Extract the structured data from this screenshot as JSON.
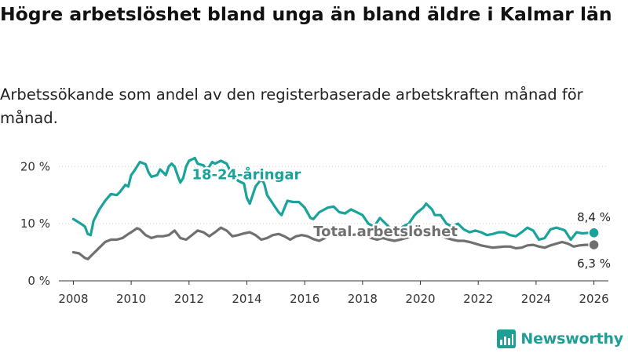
{
  "title": "Högre arbetslöshet bland unga än bland äldre i Kalmar län",
  "subtitle": "Arbetssökande som andel av den registerbaserade arbetskraften månad för månad.",
  "brand": {
    "name": "Newsworthy",
    "icon": "newsworthy-chart-icon",
    "color": "#1f9e96"
  },
  "colors": {
    "youth": "#1aa39b",
    "total": "#707070",
    "grid": "#cccccc",
    "axis": "#333333"
  },
  "chart_data": {
    "type": "line",
    "title": "Högre arbetslöshet bland unga än bland äldre i Kalmar län",
    "xlabel": "",
    "ylabel": "",
    "xlim": [
      2007.5,
      2026.5
    ],
    "ylim": [
      0,
      21
    ],
    "x_ticks": [
      2008,
      2010,
      2012,
      2014,
      2016,
      2018,
      2020,
      2022,
      2024,
      2026
    ],
    "x_tick_labels": [
      "2008",
      "2010",
      "2012",
      "2014",
      "2016",
      "2018",
      "2020",
      "2022",
      "2024",
      "2026"
    ],
    "y_ticks": [
      0,
      10,
      20
    ],
    "y_tick_labels": [
      "0 %",
      "10 %",
      "20 %"
    ],
    "series": [
      {
        "name": "18-24-åringar",
        "color": "#1aa39b",
        "end_label": "8,4 %",
        "points": [
          [
            2008.0,
            10.8
          ],
          [
            2008.2,
            10.2
          ],
          [
            2008.4,
            9.5
          ],
          [
            2008.5,
            8.2
          ],
          [
            2008.6,
            8.0
          ],
          [
            2008.7,
            10.5
          ],
          [
            2008.9,
            12.5
          ],
          [
            2009.1,
            14.0
          ],
          [
            2009.3,
            15.2
          ],
          [
            2009.5,
            15.0
          ],
          [
            2009.6,
            15.5
          ],
          [
            2009.8,
            16.8
          ],
          [
            2009.9,
            16.5
          ],
          [
            2010.0,
            18.5
          ],
          [
            2010.1,
            19.2
          ],
          [
            2010.2,
            20.0
          ],
          [
            2010.3,
            20.8
          ],
          [
            2010.5,
            20.4
          ],
          [
            2010.6,
            19.0
          ],
          [
            2010.7,
            18.2
          ],
          [
            2010.9,
            18.5
          ],
          [
            2011.0,
            19.5
          ],
          [
            2011.2,
            18.5
          ],
          [
            2011.3,
            20.0
          ],
          [
            2011.4,
            20.5
          ],
          [
            2011.5,
            20.0
          ],
          [
            2011.6,
            18.5
          ],
          [
            2011.7,
            17.2
          ],
          [
            2011.8,
            18.0
          ],
          [
            2011.9,
            20.0
          ],
          [
            2012.0,
            21.0
          ],
          [
            2012.2,
            21.5
          ],
          [
            2012.3,
            20.5
          ],
          [
            2012.5,
            20.2
          ],
          [
            2012.6,
            19.5
          ],
          [
            2012.7,
            20.0
          ],
          [
            2012.8,
            20.8
          ],
          [
            2012.9,
            20.5
          ],
          [
            2013.1,
            21.0
          ],
          [
            2013.3,
            20.5
          ],
          [
            2013.5,
            18.5
          ],
          [
            2013.7,
            17.5
          ],
          [
            2013.9,
            17.0
          ],
          [
            2014.0,
            14.5
          ],
          [
            2014.1,
            13.5
          ],
          [
            2014.3,
            16.5
          ],
          [
            2014.5,
            17.8
          ],
          [
            2014.6,
            17.0
          ],
          [
            2014.7,
            15.0
          ],
          [
            2014.9,
            13.5
          ],
          [
            2015.1,
            12.0
          ],
          [
            2015.2,
            11.5
          ],
          [
            2015.4,
            14.0
          ],
          [
            2015.6,
            13.8
          ],
          [
            2015.8,
            13.8
          ],
          [
            2016.0,
            12.8
          ],
          [
            2016.2,
            11.0
          ],
          [
            2016.3,
            10.8
          ],
          [
            2016.5,
            12.0
          ],
          [
            2016.8,
            12.8
          ],
          [
            2017.0,
            13.0
          ],
          [
            2017.2,
            12.0
          ],
          [
            2017.4,
            11.8
          ],
          [
            2017.6,
            12.5
          ],
          [
            2017.8,
            12.0
          ],
          [
            2018.0,
            11.5
          ],
          [
            2018.2,
            10.0
          ],
          [
            2018.4,
            9.5
          ],
          [
            2018.6,
            11.0
          ],
          [
            2018.8,
            10.0
          ],
          [
            2019.0,
            9.0
          ],
          [
            2019.2,
            8.5
          ],
          [
            2019.4,
            9.5
          ],
          [
            2019.6,
            10.0
          ],
          [
            2019.8,
            11.5
          ],
          [
            2019.9,
            12.0
          ],
          [
            2020.1,
            12.8
          ],
          [
            2020.2,
            13.5
          ],
          [
            2020.4,
            12.5
          ],
          [
            2020.5,
            11.5
          ],
          [
            2020.7,
            11.5
          ],
          [
            2020.9,
            10.0
          ],
          [
            2021.1,
            9.5
          ],
          [
            2021.3,
            10.0
          ],
          [
            2021.5,
            9.0
          ],
          [
            2021.7,
            8.5
          ],
          [
            2021.9,
            8.8
          ],
          [
            2022.1,
            8.5
          ],
          [
            2022.3,
            8.0
          ],
          [
            2022.5,
            8.2
          ],
          [
            2022.7,
            8.5
          ],
          [
            2022.9,
            8.5
          ],
          [
            2023.1,
            8.0
          ],
          [
            2023.3,
            7.8
          ],
          [
            2023.5,
            8.5
          ],
          [
            2023.7,
            9.3
          ],
          [
            2023.9,
            8.8
          ],
          [
            2024.1,
            7.2
          ],
          [
            2024.3,
            7.5
          ],
          [
            2024.5,
            9.0
          ],
          [
            2024.7,
            9.3
          ],
          [
            2024.9,
            9.0
          ],
          [
            2025.0,
            8.8
          ],
          [
            2025.2,
            7.2
          ],
          [
            2025.4,
            8.5
          ],
          [
            2025.6,
            8.3
          ],
          [
            2025.8,
            8.4
          ],
          [
            2026.0,
            8.4
          ]
        ]
      },
      {
        "name": "Total arbetslöshet",
        "color": "#707070",
        "end_label": "6,3 %",
        "points": [
          [
            2008.0,
            5.0
          ],
          [
            2008.2,
            4.8
          ],
          [
            2008.4,
            4.0
          ],
          [
            2008.5,
            3.8
          ],
          [
            2008.7,
            4.8
          ],
          [
            2008.9,
            5.8
          ],
          [
            2009.1,
            6.8
          ],
          [
            2009.3,
            7.2
          ],
          [
            2009.5,
            7.2
          ],
          [
            2009.7,
            7.5
          ],
          [
            2009.9,
            8.2
          ],
          [
            2010.0,
            8.5
          ],
          [
            2010.2,
            9.2
          ],
          [
            2010.3,
            9.0
          ],
          [
            2010.5,
            8.0
          ],
          [
            2010.7,
            7.5
          ],
          [
            2010.9,
            7.8
          ],
          [
            2011.1,
            7.8
          ],
          [
            2011.3,
            8.0
          ],
          [
            2011.5,
            8.8
          ],
          [
            2011.7,
            7.5
          ],
          [
            2011.9,
            7.2
          ],
          [
            2012.1,
            8.0
          ],
          [
            2012.3,
            8.8
          ],
          [
            2012.5,
            8.5
          ],
          [
            2012.7,
            7.8
          ],
          [
            2012.9,
            8.5
          ],
          [
            2013.1,
            9.3
          ],
          [
            2013.3,
            8.8
          ],
          [
            2013.5,
            7.8
          ],
          [
            2013.7,
            8.0
          ],
          [
            2013.9,
            8.3
          ],
          [
            2014.1,
            8.5
          ],
          [
            2014.3,
            8.0
          ],
          [
            2014.5,
            7.2
          ],
          [
            2014.7,
            7.5
          ],
          [
            2014.9,
            8.0
          ],
          [
            2015.1,
            8.2
          ],
          [
            2015.3,
            7.8
          ],
          [
            2015.5,
            7.2
          ],
          [
            2015.7,
            7.8
          ],
          [
            2015.9,
            8.0
          ],
          [
            2016.1,
            7.8
          ],
          [
            2016.3,
            7.3
          ],
          [
            2016.5,
            7.0
          ],
          [
            2016.7,
            7.5
          ],
          [
            2016.9,
            8.2
          ],
          [
            2017.1,
            8.5
          ],
          [
            2017.3,
            8.2
          ],
          [
            2017.6,
            8.0
          ],
          [
            2017.9,
            8.2
          ],
          [
            2018.1,
            8.0
          ],
          [
            2018.3,
            7.5
          ],
          [
            2018.5,
            7.2
          ],
          [
            2018.7,
            7.5
          ],
          [
            2018.9,
            7.2
          ],
          [
            2019.1,
            7.0
          ],
          [
            2019.3,
            7.2
          ],
          [
            2019.5,
            7.5
          ],
          [
            2019.7,
            7.8
          ],
          [
            2019.9,
            8.2
          ],
          [
            2020.1,
            8.5
          ],
          [
            2020.3,
            8.8
          ],
          [
            2020.5,
            8.2
          ],
          [
            2020.7,
            8.0
          ],
          [
            2020.9,
            7.5
          ],
          [
            2021.1,
            7.2
          ],
          [
            2021.3,
            7.0
          ],
          [
            2021.5,
            7.0
          ],
          [
            2021.7,
            6.8
          ],
          [
            2021.9,
            6.5
          ],
          [
            2022.1,
            6.2
          ],
          [
            2022.3,
            6.0
          ],
          [
            2022.5,
            5.8
          ],
          [
            2022.7,
            5.9
          ],
          [
            2022.9,
            6.0
          ],
          [
            2023.1,
            6.0
          ],
          [
            2023.3,
            5.7
          ],
          [
            2023.5,
            5.8
          ],
          [
            2023.7,
            6.2
          ],
          [
            2023.9,
            6.3
          ],
          [
            2024.1,
            6.0
          ],
          [
            2024.3,
            5.8
          ],
          [
            2024.5,
            6.2
          ],
          [
            2024.7,
            6.5
          ],
          [
            2024.9,
            6.8
          ],
          [
            2025.1,
            6.5
          ],
          [
            2025.3,
            6.0
          ],
          [
            2025.5,
            6.2
          ],
          [
            2025.7,
            6.3
          ],
          [
            2026.0,
            6.3
          ]
        ]
      }
    ],
    "annotations": [
      {
        "text": "18-24-åringar",
        "series": "18-24-åringar",
        "x": 2012.1,
        "y": 17.8
      },
      {
        "text": "Total arbetslöshet",
        "series": "Total arbetslöshet",
        "x": 2016.3,
        "y": 7.8
      }
    ]
  }
}
